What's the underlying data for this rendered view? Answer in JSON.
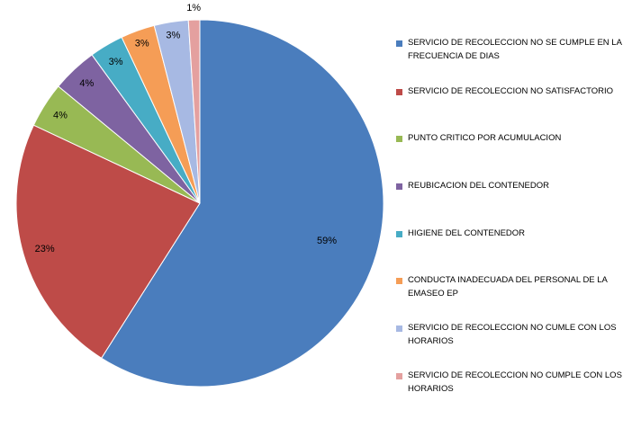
{
  "chart_data": {
    "type": "pie",
    "categories": [
      "SERVICIO DE RECOLECCION NO SE CUMPLE EN LA FRECUENCIA DE DIAS",
      "SERVICIO DE RECOLECCION NO SATISFACTORIO",
      "PUNTO CRITICO POR ACUMULACION",
      "REUBICACION DEL CONTENEDOR",
      "HIGIENE DEL CONTENEDOR",
      "CONDUCTA INADECUADA DEL PERSONAL DE LA EMASEO EP",
      "SERVICIO DE RECOLECCION NO CUMLE CON LOS HORARIOS",
      "SERVICIO DE RECOLECCION NO CUMPLE CON LOS HORARIOS"
    ],
    "values": [
      59,
      23,
      4,
      4,
      3,
      3,
      3,
      1
    ],
    "data_labels": [
      "59%",
      "23%",
      "4%",
      "4%",
      "3%",
      "3%",
      "3%",
      "1%"
    ],
    "colors": [
      "#4a7dbd",
      "#be4b48",
      "#98b954",
      "#7e63a1",
      "#47acc5",
      "#f59d56",
      "#a7b9e3",
      "#e4a09f"
    ],
    "legend_position": "right",
    "title": ""
  }
}
